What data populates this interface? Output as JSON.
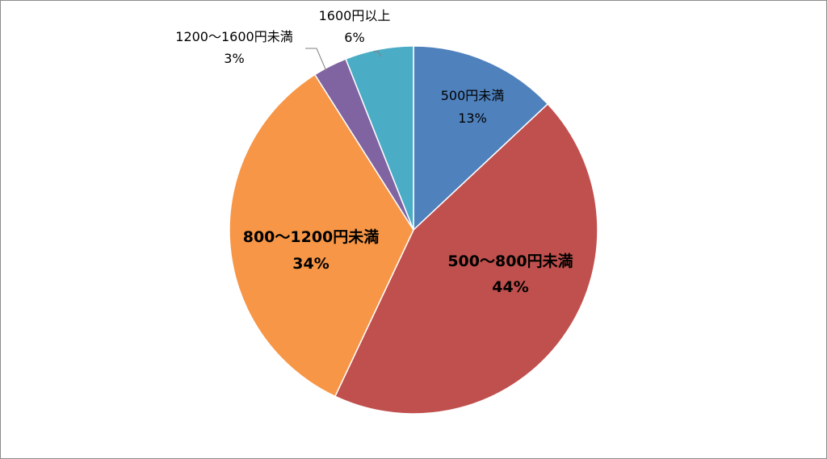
{
  "chart_data": {
    "type": "pie",
    "categories": [
      "500円未満",
      "500〜800円未満",
      "800〜1200円未満",
      "1200〜1600円未満",
      "1600円以上"
    ],
    "values": [
      13,
      44,
      34,
      3,
      6
    ],
    "value_labels": [
      "13%",
      "44%",
      "34%",
      "3%",
      "6%"
    ],
    "colors": [
      "#4F81BD",
      "#C0504D",
      "#F79646",
      "#8064A2",
      "#4BACC6"
    ],
    "start_angle_deg": 0,
    "direction": "clockwise",
    "title": "",
    "legend": "none"
  }
}
